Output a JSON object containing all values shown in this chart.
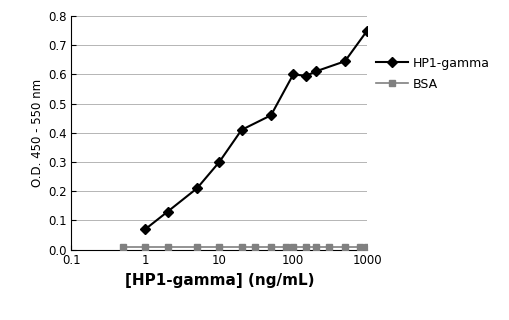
{
  "hp1_x": [
    1,
    2,
    5,
    10,
    20,
    50,
    100,
    150,
    200,
    500,
    1000
  ],
  "hp1_y": [
    0.07,
    0.13,
    0.21,
    0.3,
    0.41,
    0.46,
    0.6,
    0.595,
    0.61,
    0.645,
    0.75
  ],
  "bsa_x": [
    0.5,
    1,
    2,
    5,
    10,
    20,
    30,
    50,
    80,
    100,
    150,
    200,
    300,
    500,
    800,
    1000
  ],
  "bsa_y": [
    0.01,
    0.01,
    0.01,
    0.01,
    0.01,
    0.01,
    0.01,
    0.01,
    0.01,
    0.01,
    0.01,
    0.01,
    0.01,
    0.01,
    0.01,
    0.01
  ],
  "hp1_color": "#000000",
  "bsa_color": "#808080",
  "xlabel": "[HP1-gamma] (ng/mL)",
  "ylabel": "O.D. 450 - 550 nm",
  "ylim": [
    0,
    0.8
  ],
  "xlim": [
    0.1,
    1000
  ],
  "yticks": [
    0.0,
    0.1,
    0.2,
    0.3,
    0.4,
    0.5,
    0.6,
    0.7,
    0.8
  ],
  "xticks": [
    0.1,
    1,
    10,
    100,
    1000
  ],
  "xticklabels": [
    "0.1",
    "1",
    "10",
    "100",
    "1000"
  ],
  "legend_hp1": "HP1-gamma",
  "legend_bsa": "BSA",
  "bg_color": "#ffffff",
  "grid_color": "#aaaaaa"
}
